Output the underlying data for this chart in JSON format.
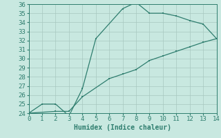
{
  "xlabel": "Humidex (Indice chaleur)",
  "xlim": [
    0,
    14
  ],
  "ylim": [
    24,
    36
  ],
  "xticks": [
    0,
    1,
    2,
    3,
    4,
    5,
    6,
    7,
    8,
    9,
    10,
    11,
    12,
    13,
    14
  ],
  "yticks": [
    24,
    25,
    26,
    27,
    28,
    29,
    30,
    31,
    32,
    33,
    34,
    35,
    36
  ],
  "line_color": "#2E7D6E",
  "bg_color": "#C8E8E0",
  "grid_color": "#A8C8C0",
  "curve1_x": [
    0,
    1,
    2,
    3,
    4,
    5,
    7,
    8,
    9,
    10,
    11,
    12,
    13,
    14
  ],
  "curve1_y": [
    24.0,
    25.0,
    25.0,
    23.7,
    26.7,
    32.2,
    35.5,
    36.2,
    35.0,
    35.0,
    34.7,
    34.2,
    33.8,
    32.2
  ],
  "curve2_x": [
    0,
    2,
    3,
    4,
    6,
    7,
    8,
    9,
    10,
    11,
    12,
    13,
    14
  ],
  "curve2_y": [
    24.0,
    24.2,
    24.2,
    25.8,
    27.8,
    28.3,
    28.8,
    29.8,
    30.3,
    30.8,
    31.3,
    31.8,
    32.2
  ],
  "marker_size": 2.0,
  "linewidth": 0.9,
  "tick_fontsize": 6.5,
  "xlabel_fontsize": 7.0
}
